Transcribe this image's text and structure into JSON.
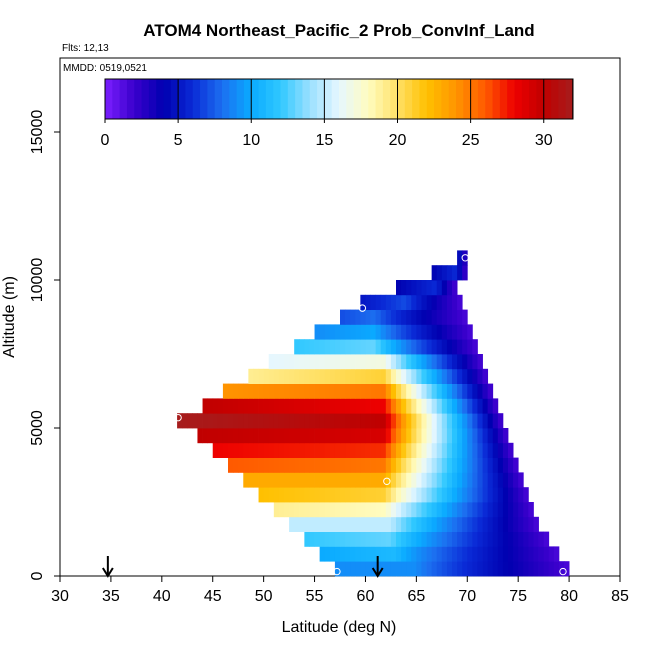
{
  "chart_data": {
    "type": "heatmap",
    "title": "ATOM4 Northeast_Pacific_2 Prob_ConvInf_Land",
    "flights_label": "Flts: 12,13",
    "dates_label": "MMDD: 0519,0521",
    "xlabel": "Latitude (deg N)",
    "ylabel": "Altitude (m)",
    "xlim": [
      30,
      85
    ],
    "ylim": [
      0,
      17500
    ],
    "xticks": [
      "30",
      "35",
      "40",
      "45",
      "50",
      "55",
      "60",
      "65",
      "70",
      "75",
      "80",
      "85"
    ],
    "yticks": [
      "0",
      "5000",
      "10000",
      "15000"
    ],
    "colorbar": {
      "min": 0,
      "max": 32,
      "ticks": [
        "0",
        "5",
        "10",
        "15",
        "20",
        "25",
        "30"
      ],
      "tick_values": [
        0,
        5,
        10,
        15,
        20,
        25,
        30
      ]
    },
    "grid": false,
    "cell": {
      "lat_step": 0.5,
      "alt_step": 500
    },
    "rows": [
      {
        "alt": 250,
        "lat_min": 57.0,
        "lat_max": 80.0,
        "peak_lat": 65.0,
        "peak_val": 9,
        "low_lat_val": 9
      },
      {
        "alt": 750,
        "lat_min": 55.5,
        "lat_max": 79.0,
        "peak_lat": 63.0,
        "peak_val": 11,
        "low_lat_val": 10
      },
      {
        "alt": 1250,
        "lat_min": 54.0,
        "lat_max": 78.0,
        "peak_lat": 62.5,
        "peak_val": 13,
        "low_lat_val": 12
      },
      {
        "alt": 1750,
        "lat_min": 52.5,
        "lat_max": 77.0,
        "peak_lat": 62.5,
        "peak_val": 15,
        "low_lat_val": 15
      },
      {
        "alt": 2250,
        "lat_min": 51.0,
        "lat_max": 76.5,
        "peak_lat": 62.0,
        "peak_val": 18,
        "low_lat_val": 19
      },
      {
        "alt": 2750,
        "lat_min": 49.5,
        "lat_max": 76.0,
        "peak_lat": 62.0,
        "peak_val": 21,
        "low_lat_val": 22
      },
      {
        "alt": 3250,
        "lat_min": 48.0,
        "lat_max": 75.5,
        "peak_lat": 62.0,
        "peak_val": 23,
        "low_lat_val": 23
      },
      {
        "alt": 3750,
        "lat_min": 46.5,
        "lat_max": 75.0,
        "peak_lat": 62.0,
        "peak_val": 25,
        "low_lat_val": 26
      },
      {
        "alt": 4250,
        "lat_min": 45.0,
        "lat_max": 74.5,
        "peak_lat": 62.0,
        "peak_val": 27,
        "low_lat_val": 28
      },
      {
        "alt": 4750,
        "lat_min": 43.5,
        "lat_max": 74.0,
        "peak_lat": 62.0,
        "peak_val": 29,
        "low_lat_val": 30
      },
      {
        "alt": 5250,
        "lat_min": 41.5,
        "lat_max": 73.5,
        "peak_lat": 62.0,
        "peak_val": 30,
        "low_lat_val": 32
      },
      {
        "alt": 5750,
        "lat_min": 44.0,
        "lat_max": 73.0,
        "peak_lat": 62.0,
        "peak_val": 28,
        "low_lat_val": 30
      },
      {
        "alt": 6250,
        "lat_min": 46.0,
        "lat_max": 72.5,
        "peak_lat": 62.0,
        "peak_val": 25,
        "low_lat_val": 24
      },
      {
        "alt": 6750,
        "lat_min": 48.5,
        "lat_max": 72.0,
        "peak_lat": 62.0,
        "peak_val": 21,
        "low_lat_val": 19
      },
      {
        "alt": 7250,
        "lat_min": 50.5,
        "lat_max": 71.5,
        "peak_lat": 62.0,
        "peak_val": 17,
        "low_lat_val": 16
      },
      {
        "alt": 7750,
        "lat_min": 53.0,
        "lat_max": 71.0,
        "peak_lat": 61.0,
        "peak_val": 13,
        "low_lat_val": 12
      },
      {
        "alt": 8250,
        "lat_min": 55.0,
        "lat_max": 70.5,
        "peak_lat": 61.0,
        "peak_val": 10,
        "low_lat_val": 9
      },
      {
        "alt": 8750,
        "lat_min": 57.5,
        "lat_max": 70.0,
        "peak_lat": 61.0,
        "peak_val": 8,
        "low_lat_val": 7
      },
      {
        "alt": 9250,
        "lat_min": 59.5,
        "lat_max": 69.5,
        "peak_lat": 64.0,
        "peak_val": 7,
        "low_lat_val": 5
      },
      {
        "alt": 9750,
        "lat_min": 63.0,
        "lat_max": 69.0,
        "peak_lat": 67.0,
        "peak_val": 6,
        "low_lat_val": 4
      },
      {
        "alt": 10250,
        "lat_min": 66.5,
        "lat_max": 70.0,
        "peak_lat": 69.0,
        "peak_val": 6,
        "low_lat_val": 4
      },
      {
        "alt": 10750,
        "lat_min": 69.0,
        "lat_max": 70.0,
        "peak_lat": 69.5,
        "peak_val": 5,
        "low_lat_val": 4
      }
    ],
    "circle_markers": [
      {
        "lat": 57.2,
        "alt": 150
      },
      {
        "lat": 79.4,
        "alt": 150
      },
      {
        "lat": 62.1,
        "alt": 3200
      },
      {
        "lat": 41.6,
        "alt": 5350
      },
      {
        "lat": 59.7,
        "alt": 9050
      },
      {
        "lat": 69.8,
        "alt": 10750
      }
    ],
    "arrow_markers": [
      {
        "lat": 34.7
      },
      {
        "lat": 61.2
      }
    ],
    "palette": [
      "#7b1fff",
      "#3a00cc",
      "#0000b0",
      "#0a2ad6",
      "#1c6ff0",
      "#0aaaff",
      "#30c8ff",
      "#9ae0ff",
      "#e6f7ff",
      "#fffcc0",
      "#ffe066",
      "#ffc000",
      "#ff9400",
      "#ff5a00",
      "#ee0000",
      "#c00000",
      "#a61c1c"
    ]
  }
}
